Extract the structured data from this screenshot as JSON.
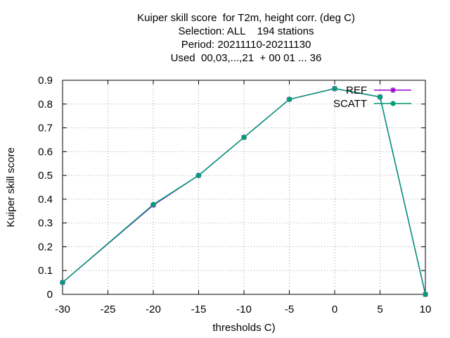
{
  "chart_data": {
    "type": "line",
    "title_lines": [
      "Kuiper skill score  for T2m, height corr. (deg C)",
      "Selection: ALL    194 stations",
      "Period: 20211110-20211130",
      "Used  00,03,...,21  + 00 01 ... 36"
    ],
    "xlabel": "thresholds C)",
    "ylabel": "Kuiper skill score",
    "xlim": [
      -30,
      10
    ],
    "ylim": [
      0,
      0.9
    ],
    "xticks": [
      -30,
      -25,
      -20,
      -15,
      -10,
      -5,
      0,
      5,
      10
    ],
    "xtick_labels": [
      "-30",
      "-25",
      "-20",
      "-15",
      "-10",
      "-5",
      "0",
      "5",
      "10"
    ],
    "yticks": [
      0,
      0.1,
      0.2,
      0.3,
      0.4,
      0.5,
      0.6,
      0.7,
      0.8,
      0.9
    ],
    "ytick_labels": [
      "0",
      "0.1",
      "0.2",
      "0.3",
      "0.4",
      "0.5",
      "0.6",
      "0.7",
      "0.8",
      "0.9"
    ],
    "grid": true,
    "legend_position": "top-right",
    "x": [
      -30,
      -20,
      -15,
      -10,
      -5,
      0,
      5,
      10
    ],
    "series": [
      {
        "name": "REF",
        "color": "#9400d3",
        "marker": "star",
        "values": [
          0.05,
          0.375,
          0.5,
          0.66,
          0.82,
          0.865,
          0.83,
          0.0
        ]
      },
      {
        "name": "SCATT",
        "color": "#009e73",
        "marker": "filled-circle",
        "values": [
          0.05,
          0.378,
          0.5,
          0.66,
          0.82,
          0.865,
          0.83,
          0.0
        ]
      }
    ]
  }
}
